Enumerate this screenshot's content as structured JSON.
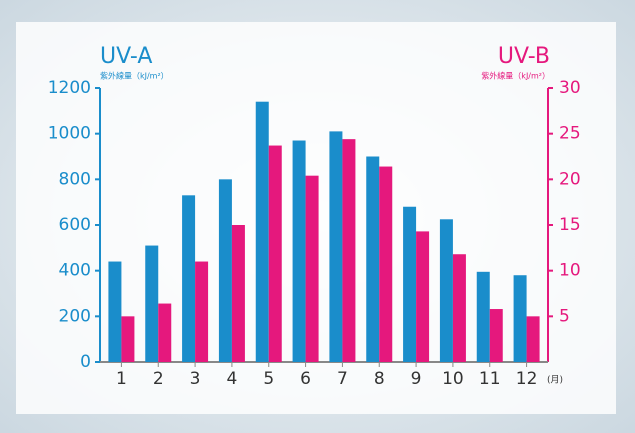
{
  "chart_data": {
    "type": "bar",
    "categories": [
      "1",
      "2",
      "3",
      "4",
      "5",
      "6",
      "7",
      "8",
      "9",
      "10",
      "11",
      "12"
    ],
    "x_unit": "(月)",
    "y_unit": "紫外線量（kJ/m²）",
    "y2_unit": "紫外線量（kJ/m²）",
    "series": [
      {
        "name": "UV-A",
        "color": "#1a8dcb",
        "values": [
          440,
          510,
          730,
          800,
          1140,
          970,
          1010,
          900,
          680,
          625,
          395,
          380
        ]
      },
      {
        "name": "UV-B",
        "color": "#e5187d",
        "axis": "y2",
        "values": [
          5,
          6.4,
          11,
          15,
          23.7,
          20.4,
          24.4,
          21.4,
          14.3,
          11.8,
          5.8,
          5
        ]
      }
    ],
    "ylim": [
      0,
      1200
    ],
    "yticks": [
      0,
      200,
      400,
      600,
      800,
      1000,
      1200
    ],
    "y2lim": [
      0,
      30
    ],
    "y2ticks": [
      5,
      10,
      15,
      20,
      25,
      30
    ],
    "grid": false
  }
}
